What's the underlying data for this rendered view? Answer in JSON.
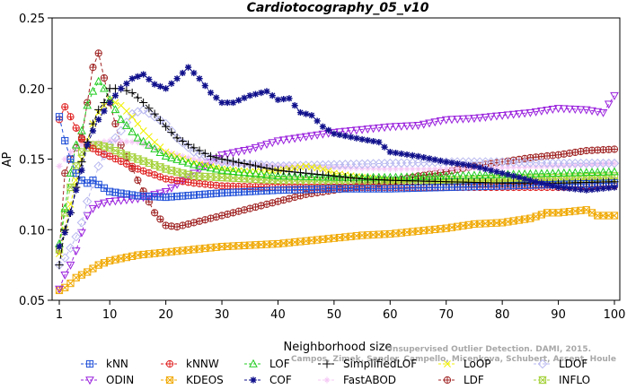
{
  "chart_data": {
    "type": "line",
    "title": "Cardiotocography_05_v10",
    "xlabel": "Neighborhood size",
    "ylabel": "AP",
    "xlim": [
      1,
      100
    ],
    "ylim": [
      0.05,
      0.25
    ],
    "x_ticks": [
      "1",
      "10",
      "20",
      "30",
      "40",
      "50",
      "60",
      "70",
      "80",
      "90",
      "100"
    ],
    "y_ticks": [
      "0.05",
      "0.10",
      "0.15",
      "0.20",
      "0.25"
    ],
    "grid": false,
    "legend_position": "bottom",
    "credit_line1": "Unsupervised Outlier Detection. DAMI, 2015.",
    "credit_line2": "Campos, Zimek, Sander, Campello, Micenkova, Schubert, Assent, Houle",
    "series": [
      {
        "name": "kNN",
        "color": "#1f4fd8",
        "marker": "square-plus",
        "points": [
          [
            1,
            0.18
          ],
          [
            2,
            0.163
          ],
          [
            3,
            0.15
          ],
          [
            4,
            0.14
          ],
          [
            5,
            0.135
          ],
          [
            6,
            0.133
          ],
          [
            7,
            0.135
          ],
          [
            8,
            0.132
          ],
          [
            10,
            0.127
          ],
          [
            15,
            0.124
          ],
          [
            20,
            0.123
          ],
          [
            30,
            0.126
          ],
          [
            40,
            0.128
          ],
          [
            50,
            0.129
          ],
          [
            60,
            0.129
          ],
          [
            70,
            0.13
          ],
          [
            80,
            0.131
          ],
          [
            90,
            0.132
          ],
          [
            100,
            0.133
          ]
        ]
      },
      {
        "name": "kNNW",
        "color": "#e02020",
        "marker": "circle-plus",
        "points": [
          [
            1,
            0.178
          ],
          [
            2,
            0.187
          ],
          [
            3,
            0.18
          ],
          [
            4,
            0.172
          ],
          [
            5,
            0.164
          ],
          [
            6,
            0.16
          ],
          [
            8,
            0.155
          ],
          [
            10,
            0.152
          ],
          [
            15,
            0.143
          ],
          [
            20,
            0.136
          ],
          [
            25,
            0.133
          ],
          [
            30,
            0.131
          ],
          [
            40,
            0.13
          ],
          [
            50,
            0.13
          ],
          [
            60,
            0.13
          ],
          [
            70,
            0.13
          ],
          [
            80,
            0.13
          ],
          [
            90,
            0.13
          ],
          [
            100,
            0.131
          ]
        ]
      },
      {
        "name": "LOF",
        "color": "#22cc22",
        "marker": "triangle",
        "points": [
          [
            1,
            0.09
          ],
          [
            2,
            0.115
          ],
          [
            3,
            0.14
          ],
          [
            4,
            0.16
          ],
          [
            5,
            0.17
          ],
          [
            6,
            0.188
          ],
          [
            7,
            0.198
          ],
          [
            8,
            0.205
          ],
          [
            9,
            0.2
          ],
          [
            10,
            0.192
          ],
          [
            12,
            0.178
          ],
          [
            15,
            0.165
          ],
          [
            20,
            0.152
          ],
          [
            25,
            0.146
          ],
          [
            30,
            0.142
          ],
          [
            40,
            0.138
          ],
          [
            50,
            0.137
          ],
          [
            60,
            0.137
          ],
          [
            70,
            0.138
          ],
          [
            80,
            0.139
          ],
          [
            90,
            0.14
          ],
          [
            100,
            0.141
          ]
        ]
      },
      {
        "name": "SimplifiedLOF",
        "color": "#000000",
        "marker": "plus",
        "points": [
          [
            1,
            0.075
          ],
          [
            2,
            0.1
          ],
          [
            3,
            0.112
          ],
          [
            4,
            0.13
          ],
          [
            5,
            0.148
          ],
          [
            6,
            0.162
          ],
          [
            7,
            0.175
          ],
          [
            8,
            0.185
          ],
          [
            9,
            0.19
          ],
          [
            10,
            0.2
          ],
          [
            12,
            0.2
          ],
          [
            14,
            0.197
          ],
          [
            16,
            0.19
          ],
          [
            18,
            0.182
          ],
          [
            20,
            0.173
          ],
          [
            22,
            0.165
          ],
          [
            25,
            0.158
          ],
          [
            28,
            0.152
          ],
          [
            30,
            0.15
          ],
          [
            35,
            0.146
          ],
          [
            40,
            0.142
          ],
          [
            45,
            0.14
          ],
          [
            50,
            0.138
          ],
          [
            55,
            0.136
          ],
          [
            60,
            0.135
          ],
          [
            70,
            0.134
          ],
          [
            80,
            0.133
          ],
          [
            90,
            0.133
          ],
          [
            100,
            0.134
          ]
        ]
      },
      {
        "name": "LoOP",
        "color": "#f0f000",
        "marker": "x",
        "points": [
          [
            1,
            0.083
          ],
          [
            2,
            0.1
          ],
          [
            3,
            0.118
          ],
          [
            4,
            0.135
          ],
          [
            5,
            0.15
          ],
          [
            6,
            0.163
          ],
          [
            7,
            0.175
          ],
          [
            8,
            0.183
          ],
          [
            9,
            0.188
          ],
          [
            10,
            0.192
          ],
          [
            12,
            0.188
          ],
          [
            14,
            0.18
          ],
          [
            16,
            0.17
          ],
          [
            18,
            0.162
          ],
          [
            20,
            0.155
          ],
          [
            25,
            0.147
          ],
          [
            30,
            0.143
          ],
          [
            35,
            0.141
          ],
          [
            40,
            0.142
          ],
          [
            45,
            0.145
          ],
          [
            48,
            0.143
          ],
          [
            50,
            0.14
          ],
          [
            55,
            0.137
          ],
          [
            60,
            0.135
          ],
          [
            70,
            0.134
          ],
          [
            80,
            0.134
          ],
          [
            90,
            0.134
          ],
          [
            100,
            0.135
          ]
        ]
      },
      {
        "name": "LDOF",
        "color": "#b8b8f0",
        "marker": "diamond",
        "points": [
          [
            1,
            0.075
          ],
          [
            2,
            0.08
          ],
          [
            3,
            0.087
          ],
          [
            4,
            0.095
          ],
          [
            5,
            0.105
          ],
          [
            6,
            0.12
          ],
          [
            8,
            0.145
          ],
          [
            10,
            0.16
          ],
          [
            12,
            0.17
          ],
          [
            14,
            0.182
          ],
          [
            16,
            0.185
          ],
          [
            18,
            0.18
          ],
          [
            20,
            0.175
          ],
          [
            22,
            0.165
          ],
          [
            25,
            0.155
          ],
          [
            30,
            0.148
          ],
          [
            40,
            0.145
          ],
          [
            50,
            0.146
          ],
          [
            60,
            0.147
          ],
          [
            70,
            0.148
          ],
          [
            80,
            0.148
          ],
          [
            90,
            0.147
          ],
          [
            100,
            0.147
          ]
        ]
      },
      {
        "name": "ODIN",
        "color": "#9a22dd",
        "marker": "triangle-down",
        "points": [
          [
            1,
            0.058
          ],
          [
            2,
            0.068
          ],
          [
            3,
            0.075
          ],
          [
            4,
            0.085
          ],
          [
            5,
            0.098
          ],
          [
            6,
            0.11
          ],
          [
            7,
            0.115
          ],
          [
            8,
            0.118
          ],
          [
            10,
            0.12
          ],
          [
            15,
            0.122
          ],
          [
            20,
            0.127
          ],
          [
            25,
            0.14
          ],
          [
            30,
            0.153
          ],
          [
            35,
            0.157
          ],
          [
            40,
            0.163
          ],
          [
            45,
            0.166
          ],
          [
            50,
            0.169
          ],
          [
            55,
            0.171
          ],
          [
            60,
            0.173
          ],
          [
            65,
            0.174
          ],
          [
            70,
            0.178
          ],
          [
            75,
            0.179
          ],
          [
            80,
            0.181
          ],
          [
            85,
            0.183
          ],
          [
            90,
            0.186
          ],
          [
            95,
            0.185
          ],
          [
            98,
            0.183
          ],
          [
            100,
            0.195
          ]
        ]
      },
      {
        "name": "KDEOS",
        "color": "#f0a800",
        "marker": "square-x",
        "points": [
          [
            1,
            0.057
          ],
          [
            2,
            0.059
          ],
          [
            3,
            0.062
          ],
          [
            4,
            0.066
          ],
          [
            5,
            0.068
          ],
          [
            6,
            0.07
          ],
          [
            8,
            0.075
          ],
          [
            10,
            0.078
          ],
          [
            15,
            0.082
          ],
          [
            20,
            0.084
          ],
          [
            25,
            0.086
          ],
          [
            30,
            0.088
          ],
          [
            35,
            0.089
          ],
          [
            40,
            0.09
          ],
          [
            45,
            0.092
          ],
          [
            50,
            0.094
          ],
          [
            55,
            0.096
          ],
          [
            60,
            0.097
          ],
          [
            65,
            0.099
          ],
          [
            70,
            0.101
          ],
          [
            75,
            0.104
          ],
          [
            80,
            0.105
          ],
          [
            85,
            0.108
          ],
          [
            88,
            0.112
          ],
          [
            90,
            0.112
          ],
          [
            95,
            0.114
          ],
          [
            97,
            0.11
          ],
          [
            100,
            0.11
          ]
        ]
      },
      {
        "name": "COF",
        "color": "#10108c",
        "marker": "asterisk",
        "points": [
          [
            1,
            0.088
          ],
          [
            2,
            0.098
          ],
          [
            3,
            0.112
          ],
          [
            4,
            0.128
          ],
          [
            5,
            0.142
          ],
          [
            6,
            0.16
          ],
          [
            7,
            0.17
          ],
          [
            8,
            0.178
          ],
          [
            10,
            0.19
          ],
          [
            12,
            0.2
          ],
          [
            14,
            0.207
          ],
          [
            16,
            0.21
          ],
          [
            18,
            0.203
          ],
          [
            20,
            0.2
          ],
          [
            22,
            0.207
          ],
          [
            24,
            0.215
          ],
          [
            26,
            0.207
          ],
          [
            28,
            0.197
          ],
          [
            30,
            0.19
          ],
          [
            32,
            0.19
          ],
          [
            35,
            0.195
          ],
          [
            38,
            0.198
          ],
          [
            40,
            0.192
          ],
          [
            42,
            0.193
          ],
          [
            44,
            0.183
          ],
          [
            46,
            0.181
          ],
          [
            48,
            0.173
          ],
          [
            50,
            0.168
          ],
          [
            55,
            0.164
          ],
          [
            58,
            0.162
          ],
          [
            60,
            0.155
          ],
          [
            65,
            0.152
          ],
          [
            70,
            0.148
          ],
          [
            75,
            0.145
          ],
          [
            80,
            0.14
          ],
          [
            85,
            0.135
          ],
          [
            90,
            0.13
          ],
          [
            95,
            0.128
          ],
          [
            100,
            0.13
          ]
        ]
      },
      {
        "name": "FastABOD",
        "color": "#f5c8f5",
        "marker": "sparkle",
        "points": [
          [
            1,
            0.145
          ],
          [
            3,
            0.155
          ],
          [
            5,
            0.16
          ],
          [
            10,
            0.163
          ],
          [
            15,
            0.162
          ],
          [
            20,
            0.155
          ],
          [
            25,
            0.15
          ],
          [
            30,
            0.147
          ],
          [
            40,
            0.145
          ],
          [
            50,
            0.144
          ],
          [
            60,
            0.143
          ],
          [
            70,
            0.143
          ],
          [
            80,
            0.144
          ],
          [
            90,
            0.145
          ],
          [
            100,
            0.147
          ]
        ]
      },
      {
        "name": "LDF",
        "color": "#a02424",
        "marker": "circle-plus",
        "points": [
          [
            1,
            0.085
          ],
          [
            2,
            0.14
          ],
          [
            3,
            0.15
          ],
          [
            4,
            0.158
          ],
          [
            5,
            0.165
          ],
          [
            6,
            0.19
          ],
          [
            7,
            0.215
          ],
          [
            8,
            0.225
          ],
          [
            10,
            0.19
          ],
          [
            12,
            0.16
          ],
          [
            15,
            0.135
          ],
          [
            18,
            0.112
          ],
          [
            20,
            0.103
          ],
          [
            22,
            0.102
          ],
          [
            25,
            0.105
          ],
          [
            30,
            0.11
          ],
          [
            35,
            0.115
          ],
          [
            40,
            0.12
          ],
          [
            45,
            0.125
          ],
          [
            50,
            0.128
          ],
          [
            55,
            0.131
          ],
          [
            60,
            0.134
          ],
          [
            65,
            0.138
          ],
          [
            70,
            0.141
          ],
          [
            75,
            0.145
          ],
          [
            80,
            0.148
          ],
          [
            85,
            0.151
          ],
          [
            90,
            0.153
          ],
          [
            95,
            0.156
          ],
          [
            100,
            0.157
          ]
        ]
      },
      {
        "name": "INFLO",
        "color": "#a6d23c",
        "marker": "hourglass",
        "points": [
          [
            1,
            0.086
          ],
          [
            2,
            0.112
          ],
          [
            3,
            0.13
          ],
          [
            4,
            0.145
          ],
          [
            5,
            0.155
          ],
          [
            6,
            0.158
          ],
          [
            7,
            0.16
          ],
          [
            8,
            0.16
          ],
          [
            10,
            0.158
          ],
          [
            12,
            0.154
          ],
          [
            15,
            0.15
          ],
          [
            20,
            0.143
          ],
          [
            25,
            0.138
          ],
          [
            30,
            0.137
          ],
          [
            40,
            0.135
          ],
          [
            50,
            0.134
          ],
          [
            60,
            0.134
          ],
          [
            70,
            0.135
          ],
          [
            80,
            0.136
          ],
          [
            90,
            0.137
          ],
          [
            100,
            0.138
          ]
        ]
      }
    ]
  }
}
